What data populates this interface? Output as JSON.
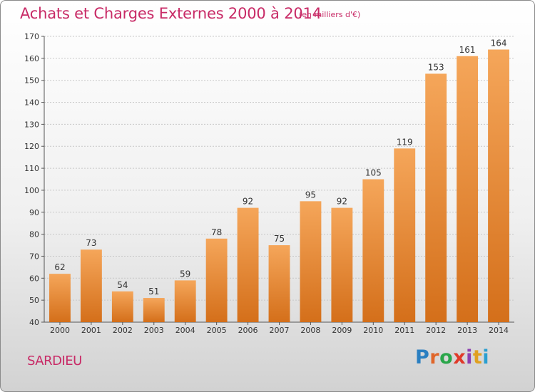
{
  "header": {
    "title": "Achats et Charges Externes 2000 à 2014",
    "subtitle": "(en milliers d'€)"
  },
  "footer": {
    "commune": "SARDIEU",
    "logo_text": "Proxiti",
    "logo_colors": [
      "#2a7fc1",
      "#e0662a",
      "#2aa64a",
      "#e03a2a",
      "#8c3fb0",
      "#e0a020",
      "#2a9fd0"
    ]
  },
  "colors": {
    "bar_top": "#f5a65a",
    "bar_bottom": "#d46f1a",
    "title": "#c82a66",
    "grid": "#c8c8c8"
  },
  "chart_data": {
    "type": "bar",
    "title": "Achats et Charges Externes 2000 à 2014",
    "subtitle": "(en milliers d'€)",
    "categories": [
      "2000",
      "2001",
      "2002",
      "2003",
      "2004",
      "2005",
      "2006",
      "2007",
      "2008",
      "2009",
      "2010",
      "2011",
      "2012",
      "2013",
      "2014"
    ],
    "values": [
      62,
      73,
      54,
      51,
      59,
      78,
      92,
      75,
      95,
      92,
      105,
      119,
      153,
      161,
      164
    ],
    "ylim": [
      40,
      170
    ],
    "yticks": [
      40,
      50,
      60,
      70,
      80,
      90,
      100,
      110,
      120,
      130,
      140,
      150,
      160,
      170
    ],
    "grid": true,
    "data_labels": true,
    "xlabel": "",
    "ylabel": ""
  }
}
